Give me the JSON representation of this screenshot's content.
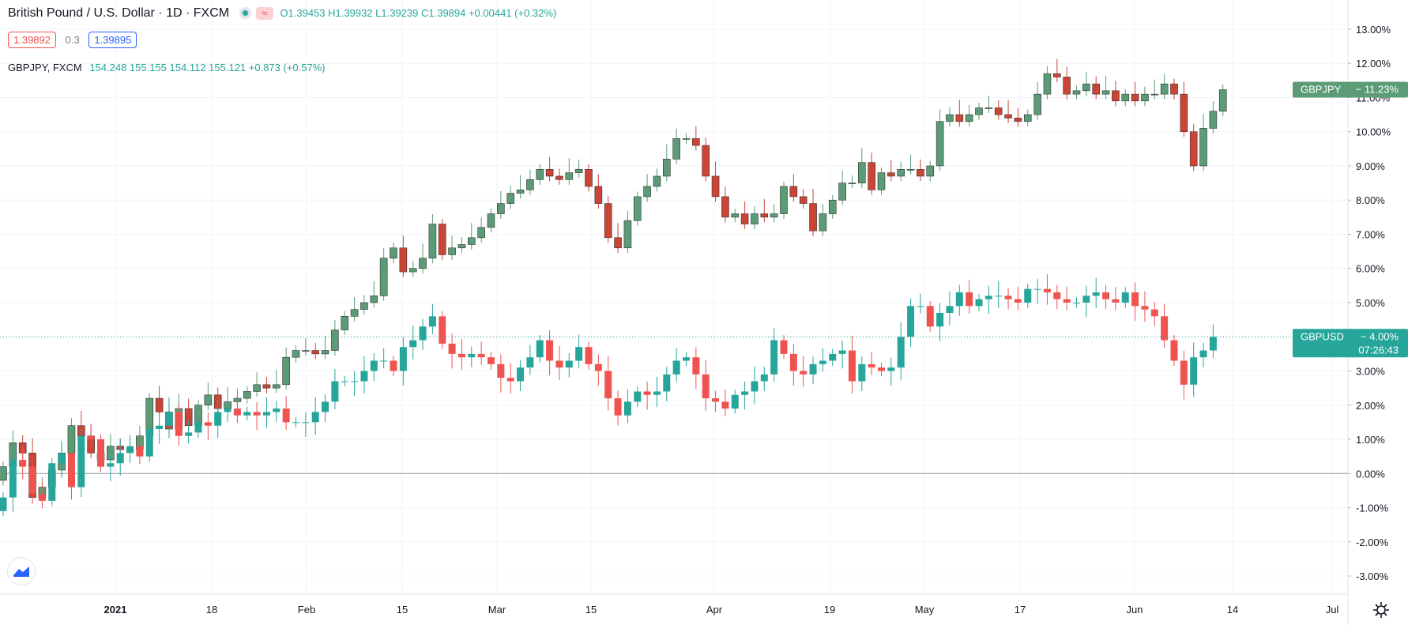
{
  "header": {
    "symbol_title": "British Pound / U.S. Dollar · 1D · FXCM",
    "ohlc": "O1.39453 H1.39932 L1.39239 C1.39894 +0.00441 (+0.32%)",
    "sell_price": "1.39892",
    "spread": "0.3",
    "buy_price": "1.39895"
  },
  "compare": {
    "label": "GBPJPY, FXCM",
    "values": "154.248 155.155 154.112 155.121 +0.873 (+0.57%)"
  },
  "icons": {
    "logo": "tradingview-logo-icon",
    "wave": "indicator-wave-icon",
    "gear": "gear-icon"
  },
  "colors": {
    "up": "#26a69a",
    "down": "#ef5350",
    "jpy_up": "#5b9c76",
    "jpy_down": "#cc4435",
    "grid": "#f0f3fa"
  },
  "chart_data": {
    "type": "candlestick",
    "y_axis": {
      "unit": "%",
      "ticks": [
        "13.00%",
        "12.00%",
        "11.00%",
        "10.00%",
        "9.00%",
        "8.00%",
        "7.00%",
        "6.00%",
        "5.00%",
        "4.00%",
        "3.00%",
        "2.00%",
        "1.00%",
        "0.00%",
        "-1.00%",
        "-2.00%",
        "-3.00%"
      ],
      "range": [
        -3.3,
        13.3
      ]
    },
    "x_axis": {
      "ticks": [
        "2021",
        "18",
        "Feb",
        "15",
        "Mar",
        "15",
        "Apr",
        "19",
        "May",
        "17",
        "Jun",
        "14",
        "Jul"
      ]
    },
    "series": [
      {
        "name": "GBPJPY",
        "last_label": "GBPJPY",
        "last_value": "11.23%",
        "closes": [
          0.2,
          0.9,
          0.6,
          -0.7,
          -0.4,
          0.1,
          0.6,
          1.4,
          1.1,
          0.6,
          0.4,
          0.8,
          0.7,
          0.7,
          1.1,
          2.2,
          1.8,
          1.3,
          1.9,
          1.4,
          2.0,
          2.3,
          1.9,
          2.1,
          2.2,
          2.4,
          2.6,
          2.5,
          2.6,
          3.4,
          3.6,
          3.6,
          3.5,
          3.6,
          4.2,
          4.6,
          4.8,
          5.0,
          5.2,
          6.3,
          6.6,
          5.9,
          6.0,
          6.3,
          7.3,
          6.4,
          6.6,
          6.7,
          6.9,
          7.2,
          7.6,
          7.9,
          8.2,
          8.3,
          8.6,
          8.9,
          8.7,
          8.6,
          8.8,
          8.9,
          8.4,
          7.9,
          6.9,
          6.6,
          7.4,
          8.1,
          8.4,
          8.7,
          9.2,
          9.8,
          9.8,
          9.6,
          8.7,
          8.1,
          7.5,
          7.6,
          7.3,
          7.6,
          7.5,
          7.6,
          8.4,
          8.1,
          7.9,
          7.1,
          7.6,
          8.0,
          8.5,
          8.5,
          9.1,
          8.3,
          8.8,
          8.7,
          8.9,
          8.9,
          8.7,
          9.0,
          10.3,
          10.5,
          10.3,
          10.5,
          10.7,
          10.7,
          10.5,
          10.4,
          10.3,
          10.5,
          11.1,
          11.7,
          11.6,
          11.1,
          11.2,
          11.4,
          11.1,
          11.2,
          10.9,
          11.1,
          10.9,
          11.1,
          11.1,
          11.4,
          11.1,
          10.0,
          9.0,
          10.1,
          10.6,
          11.23
        ]
      },
      {
        "name": "GBPUSD",
        "last_label": "GBPUSD",
        "last_value": "4.00%",
        "countdown": "07:26:43",
        "closes": [
          -0.7,
          0.4,
          0.2,
          -0.6,
          -0.8,
          0.3,
          0.6,
          -0.4,
          1.1,
          1.0,
          0.2,
          0.3,
          0.6,
          0.8,
          0.5,
          1.3,
          1.4,
          1.8,
          1.1,
          1.2,
          1.5,
          1.4,
          1.8,
          1.9,
          1.7,
          1.8,
          1.7,
          1.8,
          1.9,
          1.5,
          1.5,
          1.5,
          1.8,
          2.1,
          2.7,
          2.7,
          2.7,
          3.0,
          3.3,
          3.3,
          3.0,
          3.7,
          3.9,
          4.3,
          4.6,
          3.8,
          3.5,
          3.4,
          3.5,
          3.4,
          3.2,
          2.8,
          2.7,
          3.1,
          3.4,
          3.9,
          3.3,
          3.1,
          3.3,
          3.7,
          3.2,
          3.0,
          2.2,
          1.7,
          2.1,
          2.4,
          2.3,
          2.4,
          2.9,
          3.3,
          3.4,
          2.9,
          2.2,
          2.1,
          1.9,
          2.3,
          2.4,
          2.7,
          2.9,
          3.9,
          3.5,
          3.0,
          2.9,
          3.2,
          3.3,
          3.5,
          3.6,
          2.7,
          3.2,
          3.1,
          3.0,
          3.1,
          4.0,
          4.9,
          4.9,
          4.3,
          4.7,
          4.9,
          5.3,
          4.9,
          5.1,
          5.2,
          5.2,
          5.1,
          5.0,
          5.4,
          5.4,
          5.3,
          5.1,
          5.0,
          5.0,
          5.2,
          5.3,
          5.1,
          5.0,
          5.3,
          4.9,
          4.8,
          4.6,
          3.9,
          3.3,
          2.6,
          3.4,
          3.6,
          4.0
        ]
      }
    ]
  }
}
